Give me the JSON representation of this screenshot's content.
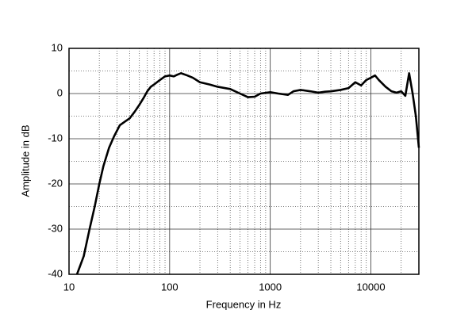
{
  "chart_data": {
    "type": "line",
    "xlabel": "Frequency in Hz",
    "ylabel": "Amplitude in dB",
    "x": [
      12,
      14,
      16,
      18,
      20,
      22,
      25,
      28,
      32,
      36,
      40,
      45,
      50,
      55,
      60,
      65,
      70,
      80,
      90,
      100,
      110,
      120,
      130,
      150,
      170,
      200,
      250,
      300,
      400,
      500,
      600,
      700,
      800,
      1000,
      1200,
      1500,
      1700,
      2000,
      2500,
      3000,
      3500,
      4000,
      5000,
      6000,
      7000,
      8000,
      9000,
      10000,
      11000,
      12000,
      14000,
      16000,
      18000,
      20000,
      22000,
      24000,
      26000,
      28000,
      30000
    ],
    "values": [
      -40,
      -36,
      -30,
      -25,
      -20,
      -16,
      -12,
      -9.5,
      -7,
      -6.2,
      -5.5,
      -4,
      -2.5,
      -1,
      0.5,
      1.5,
      2,
      3,
      3.8,
      4,
      3.8,
      4.2,
      4.5,
      4,
      3.5,
      2.5,
      2,
      1.5,
      1,
      0,
      -0.8,
      -0.7,
      0,
      0.3,
      0,
      -0.3,
      0.5,
      0.8,
      0.5,
      0.2,
      0.4,
      0.5,
      0.8,
      1.2,
      2.5,
      1.8,
      3,
      3.5,
      4,
      3,
      1.5,
      0.5,
      0.2,
      0.5,
      -0.5,
      4.5,
      0,
      -5,
      -12
    ],
    "color": "#000000",
    "xscale": "log",
    "xlim": [
      10,
      30000
    ],
    "xticks": [
      10,
      100,
      1000,
      10000
    ],
    "xminorticks": [
      20,
      30,
      40,
      50,
      60,
      70,
      80,
      90,
      200,
      300,
      400,
      500,
      600,
      700,
      800,
      900,
      2000,
      3000,
      4000,
      5000,
      6000,
      7000,
      8000,
      9000,
      20000
    ],
    "ylim": [
      -40,
      10
    ],
    "yticks": [
      -40,
      -30,
      -20,
      -10,
      0,
      10
    ],
    "yminorticks": [
      -35,
      -25,
      -15,
      -5,
      5
    ],
    "grid": true
  }
}
